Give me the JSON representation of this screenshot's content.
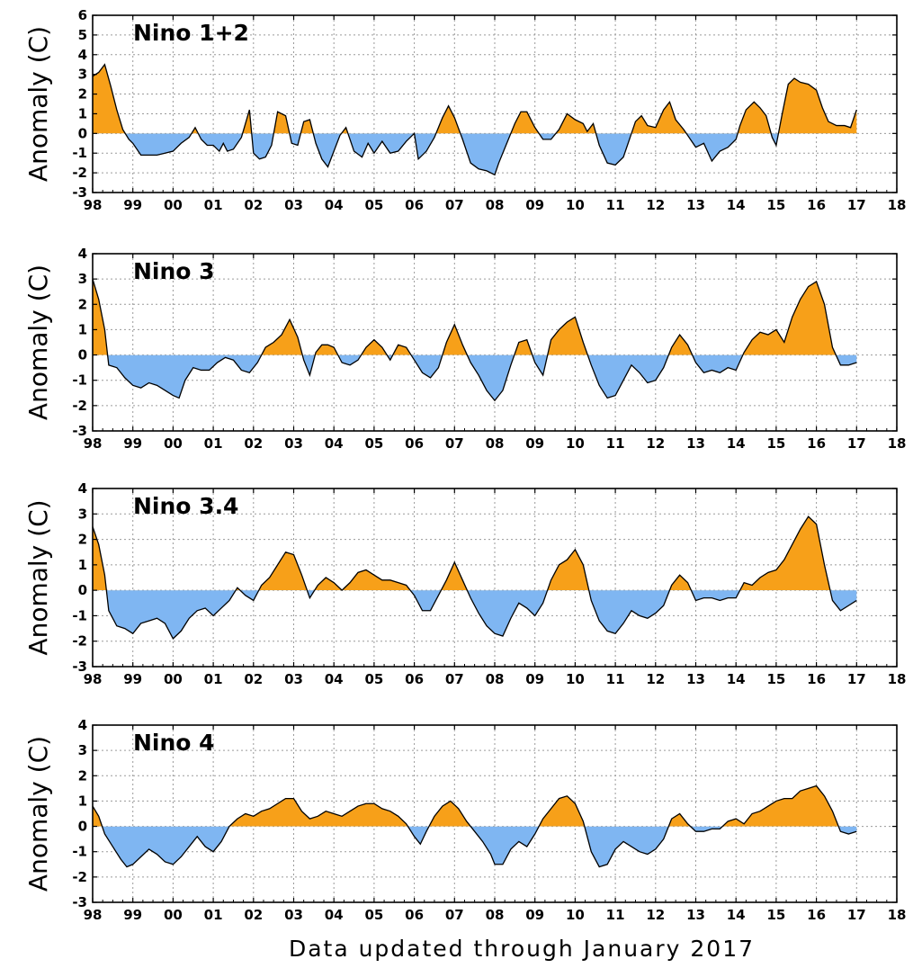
{
  "footer": {
    "caption": "Data updated through January 2017"
  },
  "colors": {
    "positive": "#f7a019",
    "negative": "#7fb6f2",
    "line": "#000000",
    "grid": "#9a9a9a"
  },
  "x_tick_labels": [
    "98",
    "99",
    "00",
    "01",
    "02",
    "03",
    "04",
    "05",
    "06",
    "07",
    "08",
    "09",
    "10",
    "11",
    "12",
    "13",
    "14",
    "15",
    "16",
    "17",
    "18"
  ],
  "chart_data": [
    {
      "type": "area",
      "title": "Nino 1+2",
      "ylabel": "Anomaly (C)",
      "xlim": [
        1998,
        2018
      ],
      "ylim": [
        -3,
        6
      ],
      "yticks": [
        -3,
        -2,
        -1,
        0,
        1,
        2,
        3,
        4,
        5,
        6
      ],
      "grid": true,
      "x": [
        1998.0,
        1998.15,
        1998.3,
        1998.45,
        1998.6,
        1998.75,
        1998.9,
        1999.0,
        1999.2,
        1999.4,
        1999.6,
        1999.8,
        2000.0,
        2000.2,
        2000.4,
        2000.55,
        2000.7,
        2000.85,
        2001.0,
        2001.15,
        2001.25,
        2001.35,
        2001.5,
        2001.7,
        2001.9,
        2002.0,
        2002.15,
        2002.3,
        2002.45,
        2002.6,
        2002.8,
        2002.95,
        2003.1,
        2003.25,
        2003.4,
        2003.55,
        2003.7,
        2003.85,
        2004.0,
        2004.15,
        2004.3,
        2004.5,
        2004.7,
        2004.85,
        2005.0,
        2005.2,
        2005.4,
        2005.6,
        2005.8,
        2006.0,
        2006.1,
        2006.3,
        2006.5,
        2006.7,
        2006.85,
        2007.0,
        2007.2,
        2007.4,
        2007.6,
        2007.8,
        2008.0,
        2008.1,
        2008.3,
        2008.5,
        2008.65,
        2008.8,
        2009.0,
        2009.2,
        2009.4,
        2009.6,
        2009.8,
        2010.0,
        2010.2,
        2010.3,
        2010.45,
        2010.6,
        2010.8,
        2011.0,
        2011.2,
        2011.35,
        2011.5,
        2011.65,
        2011.8,
        2012.0,
        2012.2,
        2012.35,
        2012.5,
        2012.7,
        2012.9,
        2013.0,
        2013.2,
        2013.4,
        2013.6,
        2013.8,
        2014.0,
        2014.1,
        2014.25,
        2014.45,
        2014.6,
        2014.75,
        2014.9,
        2015.0,
        2015.15,
        2015.3,
        2015.45,
        2015.6,
        2015.8,
        2016.0,
        2016.15,
        2016.3,
        2016.5,
        2016.7,
        2016.85,
        2017.0
      ],
      "y": [
        2.9,
        3.1,
        3.5,
        2.4,
        1.2,
        0.2,
        -0.3,
        -0.5,
        -1.1,
        -1.1,
        -1.1,
        -1.0,
        -0.9,
        -0.5,
        -0.2,
        0.3,
        -0.3,
        -0.6,
        -0.6,
        -0.9,
        -0.5,
        -0.9,
        -0.8,
        -0.2,
        1.2,
        -1.0,
        -1.3,
        -1.2,
        -0.6,
        1.1,
        0.9,
        -0.5,
        -0.6,
        0.6,
        0.7,
        -0.5,
        -1.3,
        -1.7,
        -0.9,
        -0.1,
        0.3,
        -0.9,
        -1.2,
        -0.5,
        -1.0,
        -0.4,
        -1.0,
        -0.9,
        -0.4,
        0.0,
        -1.3,
        -0.9,
        -0.2,
        0.8,
        1.4,
        0.8,
        -0.3,
        -1.5,
        -1.8,
        -1.9,
        -2.1,
        -1.5,
        -0.5,
        0.5,
        1.1,
        1.1,
        0.3,
        -0.3,
        -0.3,
        0.2,
        1.0,
        0.7,
        0.5,
        0.1,
        0.5,
        -0.6,
        -1.5,
        -1.6,
        -1.2,
        -0.3,
        0.6,
        0.9,
        0.4,
        0.3,
        1.2,
        1.6,
        0.7,
        0.2,
        -0.4,
        -0.7,
        -0.5,
        -1.4,
        -0.9,
        -0.7,
        -0.3,
        0.4,
        1.2,
        1.6,
        1.3,
        0.9,
        -0.2,
        -0.6,
        1.0,
        2.5,
        2.8,
        2.6,
        2.5,
        2.2,
        1.3,
        0.6,
        0.4,
        0.4,
        0.3,
        1.2
      ]
    },
    {
      "type": "area",
      "title": "Nino 3",
      "ylabel": "Anomaly (C)",
      "xlim": [
        1998,
        2018
      ],
      "ylim": [
        -3,
        4
      ],
      "yticks": [
        -3,
        -2,
        -1,
        0,
        1,
        2,
        3,
        4
      ],
      "grid": true,
      "x": [
        1998.0,
        1998.15,
        1998.3,
        1998.4,
        1998.6,
        1998.8,
        1999.0,
        1999.2,
        1999.4,
        1999.6,
        1999.8,
        2000.0,
        2000.15,
        2000.3,
        2000.5,
        2000.7,
        2000.9,
        2001.1,
        2001.3,
        2001.5,
        2001.7,
        2001.9,
        2002.1,
        2002.3,
        2002.5,
        2002.7,
        2002.9,
        2003.1,
        2003.25,
        2003.4,
        2003.55,
        2003.7,
        2003.85,
        2004.0,
        2004.2,
        2004.4,
        2004.6,
        2004.8,
        2005.0,
        2005.2,
        2005.4,
        2005.6,
        2005.8,
        2006.0,
        2006.2,
        2006.4,
        2006.6,
        2006.8,
        2007.0,
        2007.2,
        2007.4,
        2007.6,
        2007.8,
        2008.0,
        2008.2,
        2008.4,
        2008.6,
        2008.8,
        2009.0,
        2009.2,
        2009.4,
        2009.6,
        2009.8,
        2010.0,
        2010.2,
        2010.4,
        2010.6,
        2010.8,
        2011.0,
        2011.2,
        2011.4,
        2011.6,
        2011.8,
        2012.0,
        2012.2,
        2012.4,
        2012.6,
        2012.8,
        2013.0,
        2013.2,
        2013.4,
        2013.6,
        2013.8,
        2014.0,
        2014.2,
        2014.4,
        2014.6,
        2014.8,
        2015.0,
        2015.2,
        2015.4,
        2015.6,
        2015.8,
        2016.0,
        2016.2,
        2016.4,
        2016.6,
        2016.8,
        2017.0
      ],
      "y": [
        3.0,
        2.2,
        1.0,
        -0.4,
        -0.5,
        -0.9,
        -1.2,
        -1.3,
        -1.1,
        -1.2,
        -1.4,
        -1.6,
        -1.7,
        -1.0,
        -0.5,
        -0.6,
        -0.6,
        -0.3,
        -0.1,
        -0.2,
        -0.6,
        -0.7,
        -0.3,
        0.3,
        0.5,
        0.8,
        1.4,
        0.7,
        -0.2,
        -0.8,
        0.1,
        0.4,
        0.4,
        0.3,
        -0.3,
        -0.4,
        -0.2,
        0.3,
        0.6,
        0.3,
        -0.2,
        0.4,
        0.3,
        -0.2,
        -0.7,
        -0.9,
        -0.5,
        0.5,
        1.2,
        0.4,
        -0.3,
        -0.8,
        -1.4,
        -1.8,
        -1.4,
        -0.4,
        0.5,
        0.6,
        -0.3,
        -0.8,
        0.6,
        1.0,
        1.3,
        1.5,
        0.5,
        -0.4,
        -1.2,
        -1.7,
        -1.6,
        -1.0,
        -0.4,
        -0.7,
        -1.1,
        -1.0,
        -0.5,
        0.3,
        0.8,
        0.4,
        -0.3,
        -0.7,
        -0.6,
        -0.7,
        -0.5,
        -0.6,
        0.1,
        0.6,
        0.9,
        0.8,
        1.0,
        0.5,
        1.5,
        2.2,
        2.7,
        2.9,
        2.0,
        0.3,
        -0.4,
        -0.4,
        -0.3
      ]
    },
    {
      "type": "area",
      "title": "Nino 3.4",
      "ylabel": "Anomaly (C)",
      "xlim": [
        1998,
        2018
      ],
      "ylim": [
        -3,
        4
      ],
      "yticks": [
        -3,
        -2,
        -1,
        0,
        1,
        2,
        3,
        4
      ],
      "grid": true,
      "x": [
        1998.0,
        1998.15,
        1998.3,
        1998.4,
        1998.6,
        1998.8,
        1999.0,
        1999.2,
        1999.4,
        1999.6,
        1999.8,
        2000.0,
        2000.2,
        2000.4,
        2000.6,
        2000.8,
        2001.0,
        2001.2,
        2001.4,
        2001.6,
        2001.8,
        2002.0,
        2002.2,
        2002.4,
        2002.6,
        2002.8,
        2003.0,
        2003.2,
        2003.4,
        2003.6,
        2003.8,
        2004.0,
        2004.2,
        2004.4,
        2004.6,
        2004.8,
        2005.0,
        2005.2,
        2005.4,
        2005.6,
        2005.8,
        2006.0,
        2006.2,
        2006.4,
        2006.6,
        2006.8,
        2007.0,
        2007.2,
        2007.4,
        2007.6,
        2007.8,
        2008.0,
        2008.2,
        2008.4,
        2008.6,
        2008.8,
        2009.0,
        2009.2,
        2009.4,
        2009.6,
        2009.8,
        2010.0,
        2010.2,
        2010.4,
        2010.6,
        2010.8,
        2011.0,
        2011.2,
        2011.4,
        2011.6,
        2011.8,
        2012.0,
        2012.2,
        2012.4,
        2012.6,
        2012.8,
        2013.0,
        2013.2,
        2013.4,
        2013.6,
        2013.8,
        2014.0,
        2014.2,
        2014.4,
        2014.6,
        2014.8,
        2015.0,
        2015.2,
        2015.4,
        2015.6,
        2015.8,
        2016.0,
        2016.2,
        2016.4,
        2016.6,
        2016.8,
        2017.0
      ],
      "y": [
        2.5,
        1.8,
        0.6,
        -0.8,
        -1.4,
        -1.5,
        -1.7,
        -1.3,
        -1.2,
        -1.1,
        -1.3,
        -1.9,
        -1.6,
        -1.1,
        -0.8,
        -0.7,
        -1.0,
        -0.7,
        -0.4,
        0.1,
        -0.2,
        -0.4,
        0.2,
        0.5,
        1.0,
        1.5,
        1.4,
        0.6,
        -0.3,
        0.2,
        0.5,
        0.3,
        0.0,
        0.3,
        0.7,
        0.8,
        0.6,
        0.4,
        0.4,
        0.3,
        0.2,
        -0.2,
        -0.8,
        -0.8,
        -0.2,
        0.4,
        1.1,
        0.4,
        -0.3,
        -0.9,
        -1.4,
        -1.7,
        -1.8,
        -1.1,
        -0.5,
        -0.7,
        -1.0,
        -0.5,
        0.4,
        1.0,
        1.2,
        1.6,
        1.0,
        -0.4,
        -1.2,
        -1.6,
        -1.7,
        -1.3,
        -0.8,
        -1.0,
        -1.1,
        -0.9,
        -0.6,
        0.2,
        0.6,
        0.3,
        -0.4,
        -0.3,
        -0.3,
        -0.4,
        -0.3,
        -0.3,
        0.3,
        0.2,
        0.5,
        0.7,
        0.8,
        1.2,
        1.8,
        2.4,
        2.9,
        2.6,
        1.0,
        -0.4,
        -0.8,
        -0.6,
        -0.4
      ]
    },
    {
      "type": "area",
      "title": "Nino 4",
      "ylabel": "Anomaly (C)",
      "xlim": [
        1998,
        2018
      ],
      "ylim": [
        -3,
        4
      ],
      "yticks": [
        -3,
        -2,
        -1,
        0,
        1,
        2,
        3,
        4
      ],
      "grid": true,
      "x": [
        1998.0,
        1998.15,
        1998.3,
        1998.5,
        1998.7,
        1998.85,
        1999.0,
        1999.2,
        1999.4,
        1999.6,
        1999.8,
        2000.0,
        2000.2,
        2000.4,
        2000.6,
        2000.8,
        2001.0,
        2001.2,
        2001.4,
        2001.6,
        2001.8,
        2002.0,
        2002.2,
        2002.4,
        2002.6,
        2002.8,
        2003.0,
        2003.2,
        2003.4,
        2003.6,
        2003.8,
        2004.0,
        2004.2,
        2004.4,
        2004.6,
        2004.8,
        2005.0,
        2005.2,
        2005.4,
        2005.6,
        2005.8,
        2006.0,
        2006.15,
        2006.3,
        2006.5,
        2006.7,
        2006.9,
        2007.1,
        2007.3,
        2007.5,
        2007.7,
        2007.9,
        2008.0,
        2008.2,
        2008.4,
        2008.6,
        2008.8,
        2009.0,
        2009.2,
        2009.4,
        2009.6,
        2009.8,
        2010.0,
        2010.2,
        2010.4,
        2010.6,
        2010.8,
        2011.0,
        2011.2,
        2011.4,
        2011.6,
        2011.8,
        2012.0,
        2012.2,
        2012.4,
        2012.6,
        2012.8,
        2013.0,
        2013.2,
        2013.4,
        2013.6,
        2013.8,
        2014.0,
        2014.2,
        2014.4,
        2014.6,
        2014.8,
        2015.0,
        2015.2,
        2015.4,
        2015.6,
        2015.8,
        2016.0,
        2016.2,
        2016.4,
        2016.6,
        2016.8,
        2017.0
      ],
      "y": [
        0.8,
        0.4,
        -0.3,
        -0.8,
        -1.3,
        -1.6,
        -1.5,
        -1.2,
        -0.9,
        -1.1,
        -1.4,
        -1.5,
        -1.2,
        -0.8,
        -0.4,
        -0.8,
        -1.0,
        -0.6,
        0.0,
        0.3,
        0.5,
        0.4,
        0.6,
        0.7,
        0.9,
        1.1,
        1.1,
        0.6,
        0.3,
        0.4,
        0.6,
        0.5,
        0.4,
        0.6,
        0.8,
        0.9,
        0.9,
        0.7,
        0.6,
        0.4,
        0.1,
        -0.4,
        -0.7,
        -0.2,
        0.4,
        0.8,
        1.0,
        0.7,
        0.2,
        -0.2,
        -0.6,
        -1.1,
        -1.5,
        -1.5,
        -0.9,
        -0.6,
        -0.8,
        -0.3,
        0.3,
        0.7,
        1.1,
        1.2,
        0.9,
        0.2,
        -1.0,
        -1.6,
        -1.5,
        -0.9,
        -0.6,
        -0.8,
        -1.0,
        -1.1,
        -0.9,
        -0.5,
        0.3,
        0.5,
        0.1,
        -0.2,
        -0.2,
        -0.1,
        -0.1,
        0.2,
        0.3,
        0.1,
        0.5,
        0.6,
        0.8,
        1.0,
        1.1,
        1.1,
        1.4,
        1.5,
        1.6,
        1.2,
        0.6,
        -0.2,
        -0.3,
        -0.2
      ]
    }
  ]
}
